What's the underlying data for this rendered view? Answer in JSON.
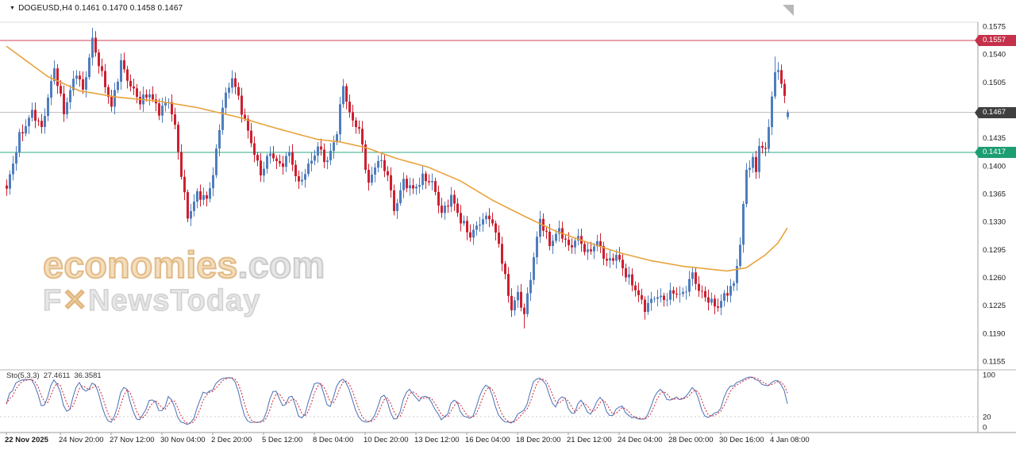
{
  "symbol_bar": {
    "dropdown_icon": "▼",
    "symbol": "DOGEUSD,H4",
    "ohlc_text": "0.1461 0.1470 0.1458 0.1467"
  },
  "watermark": {
    "brand": "economies",
    "suffix": ".com",
    "line2_prefix": "F",
    "line2_x": "✕",
    "line2_rest": "NewsToday"
  },
  "indicator_label": {
    "name": "Sto(5,3,3)",
    "k_value": "27.4611",
    "d_value": "36.3581"
  },
  "colors": {
    "bull": "#4f7dbe",
    "bear": "#cc2030",
    "ma": "#e8a33c",
    "sto_k": "#4a6fb5",
    "sto_d": "#cc2233",
    "axis_text": "#1a1a1a",
    "frame": "#9c9c9c"
  },
  "chart_data": {
    "type": "candlestick",
    "symbol": "DOGEUSD",
    "timeframe": "H4",
    "ohlc_current": {
      "open": 0.1461,
      "high": 0.147,
      "low": 0.1458,
      "close": 0.1467
    },
    "y_axis": {
      "min": 0.115,
      "max": 0.158,
      "ticks": [
        0.1575,
        0.154,
        0.1505,
        0.147,
        0.1435,
        0.14,
        0.1365,
        0.133,
        0.1295,
        0.126,
        0.1225,
        0.119,
        0.1155
      ]
    },
    "x_axis": {
      "labels": [
        {
          "text": "22 Nov 2025",
          "idx": 0,
          "bold": true
        },
        {
          "text": "24 Nov 20:00",
          "idx": 17
        },
        {
          "text": "27 Nov 12:00",
          "idx": 33
        },
        {
          "text": "30 Nov 04:00",
          "idx": 49
        },
        {
          "text": "2 Dec 20:00",
          "idx": 65
        },
        {
          "text": "5 Dec 12:00",
          "idx": 81
        },
        {
          "text": "8 Dec 04:00",
          "idx": 97
        },
        {
          "text": "10 Dec 20:00",
          "idx": 113
        },
        {
          "text": "13 Dec 12:00",
          "idx": 129
        },
        {
          "text": "16 Dec 04:00",
          "idx": 145
        },
        {
          "text": "18 Dec 20:00",
          "idx": 161
        },
        {
          "text": "21 Dec 12:00",
          "idx": 177
        },
        {
          "text": "24 Dec 04:00",
          "idx": 193
        },
        {
          "text": "28 Dec 00:00",
          "idx": 209
        },
        {
          "text": "30 Dec 16:00",
          "idx": 225
        },
        {
          "text": "4 Jan 08:00",
          "idx": 241
        }
      ]
    },
    "h_lines": [
      {
        "price": 0.1557,
        "label": "0.1557",
        "role": "resistance",
        "line_color": "#cc4457",
        "tag_bg": "#c5314a"
      },
      {
        "price": 0.1467,
        "label": "0.1467",
        "role": "current-price",
        "line_color": "#c0c0c0",
        "tag_bg": "#3f3f3f"
      },
      {
        "price": 0.1417,
        "label": "0.1417",
        "role": "support",
        "line_color": "#2fa883",
        "tag_bg": "#1d9e72"
      }
    ],
    "candles": {
      "count": 247,
      "noise_amp": 0.0008,
      "wick_amp": 0.0007,
      "close_keyframes": [
        [
          0,
          0.1368
        ],
        [
          2,
          0.1402
        ],
        [
          4,
          0.1438
        ],
        [
          8,
          0.1468
        ],
        [
          11,
          0.1444
        ],
        [
          15,
          0.1525
        ],
        [
          18,
          0.1468
        ],
        [
          22,
          0.1516
        ],
        [
          24,
          0.1494
        ],
        [
          27,
          0.156
        ],
        [
          30,
          0.1512
        ],
        [
          33,
          0.1472
        ],
        [
          36,
          0.1532
        ],
        [
          39,
          0.15
        ],
        [
          42,
          0.1478
        ],
        [
          45,
          0.1492
        ],
        [
          48,
          0.147
        ],
        [
          51,
          0.148
        ],
        [
          53,
          0.1446
        ],
        [
          55,
          0.139
        ],
        [
          57,
          0.1338
        ],
        [
          60,
          0.1364
        ],
        [
          63,
          0.1355
        ],
        [
          65,
          0.139
        ],
        [
          68,
          0.1478
        ],
        [
          71,
          0.151
        ],
        [
          74,
          0.1468
        ],
        [
          77,
          0.1432
        ],
        [
          80,
          0.139
        ],
        [
          83,
          0.1414
        ],
        [
          86,
          0.14
        ],
        [
          89,
          0.1418
        ],
        [
          92,
          0.1374
        ],
        [
          95,
          0.1398
        ],
        [
          98,
          0.1426
        ],
        [
          101,
          0.1404
        ],
        [
          104,
          0.144
        ],
        [
          106,
          0.1502
        ],
        [
          108,
          0.1466
        ],
        [
          111,
          0.1446
        ],
        [
          114,
          0.1374
        ],
        [
          117,
          0.141
        ],
        [
          120,
          0.1392
        ],
        [
          122,
          0.1342
        ],
        [
          125,
          0.1378
        ],
        [
          128,
          0.1372
        ],
        [
          131,
          0.1386
        ],
        [
          134,
          0.1376
        ],
        [
          137,
          0.134
        ],
        [
          140,
          0.1364
        ],
        [
          143,
          0.133
        ],
        [
          146,
          0.131
        ],
        [
          149,
          0.1332
        ],
        [
          152,
          0.1338
        ],
        [
          155,
          0.13
        ],
        [
          157,
          0.1258
        ],
        [
          159,
          0.1222
        ],
        [
          161,
          0.1242
        ],
        [
          163,
          0.1212
        ],
        [
          166,
          0.1282
        ],
        [
          168,
          0.1334
        ],
        [
          171,
          0.1304
        ],
        [
          174,
          0.1318
        ],
        [
          177,
          0.1296
        ],
        [
          180,
          0.1312
        ],
        [
          183,
          0.129
        ],
        [
          186,
          0.1302
        ],
        [
          189,
          0.128
        ],
        [
          192,
          0.129
        ],
        [
          195,
          0.1262
        ],
        [
          198,
          0.1244
        ],
        [
          201,
          0.1224
        ],
        [
          204,
          0.1236
        ],
        [
          207,
          0.123
        ],
        [
          210,
          0.1243
        ],
        [
          213,
          0.124
        ],
        [
          216,
          0.1262
        ],
        [
          218,
          0.1242
        ],
        [
          221,
          0.1234
        ],
        [
          224,
          0.1224
        ],
        [
          227,
          0.124
        ],
        [
          229,
          0.125
        ],
        [
          231,
          0.1304
        ],
        [
          233,
          0.1398
        ],
        [
          235,
          0.1406
        ],
        [
          236,
          0.1392
        ],
        [
          237,
          0.1424
        ],
        [
          239,
          0.1416
        ],
        [
          240,
          0.1454
        ],
        [
          242,
          0.1518
        ],
        [
          243,
          0.1524
        ],
        [
          244,
          0.1506
        ],
        [
          245,
          0.1484
        ],
        [
          246,
          0.1467
        ]
      ],
      "wick_overrides": [
        {
          "idx": 27,
          "high": 0.1573
        },
        {
          "idx": 163,
          "low": 0.1196
        },
        {
          "idx": 201,
          "low": 0.1207
        },
        {
          "idx": 242,
          "high": 0.1537
        }
      ]
    },
    "ma_line": {
      "points": [
        [
          0,
          0.155
        ],
        [
          13,
          0.1512
        ],
        [
          23,
          0.1494
        ],
        [
          35,
          0.1486
        ],
        [
          48,
          0.1481
        ],
        [
          60,
          0.1473
        ],
        [
          73,
          0.1461
        ],
        [
          85,
          0.1447
        ],
        [
          98,
          0.1433
        ],
        [
          105,
          0.143
        ],
        [
          113,
          0.1423
        ],
        [
          123,
          0.1409
        ],
        [
          133,
          0.1398
        ],
        [
          143,
          0.1381
        ],
        [
          153,
          0.1357
        ],
        [
          163,
          0.1337
        ],
        [
          173,
          0.1318
        ],
        [
          183,
          0.1304
        ],
        [
          193,
          0.1291
        ],
        [
          203,
          0.1281
        ],
        [
          213,
          0.1274
        ],
        [
          220,
          0.1271
        ],
        [
          227,
          0.1268
        ],
        [
          233,
          0.1272
        ],
        [
          239,
          0.1288
        ],
        [
          243,
          0.1303
        ],
        [
          246,
          0.1322
        ]
      ]
    },
    "stochastic": {
      "k_period": 5,
      "d_period": 3,
      "slowing": 3,
      "k": 27.4611,
      "d": 36.3581,
      "level": 20,
      "axis_labels": [
        100,
        20,
        0
      ]
    }
  }
}
